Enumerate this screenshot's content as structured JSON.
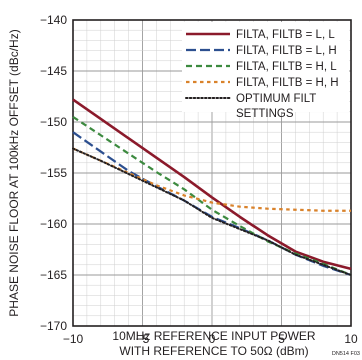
{
  "chart_data": {
    "type": "line",
    "xlabel_lines": [
      "10MHz REFERENCE INPUT POWER",
      "WITH REFERENCE TO 50Ω (dBm)"
    ],
    "ylabel": "PHASE NOISE FLOOR AT 100kHz OFFSET (dBc/Hz)",
    "figure_id": "DN514 F03",
    "xlim": [
      -10,
      10
    ],
    "ylim": [
      -170,
      -140
    ],
    "x_ticks": [
      -10,
      -5,
      0,
      5,
      10
    ],
    "y_ticks": [
      -140,
      -145,
      -150,
      -155,
      -160,
      -165,
      -170
    ],
    "grid": true,
    "legend_position": "top-right",
    "series": [
      {
        "name": "FILTA, FILTB = L, L",
        "color": "#8b1a2b",
        "style": "solid",
        "x": [
          -10,
          -8,
          -6,
          -4,
          -2,
          0,
          2,
          4,
          6,
          8,
          10
        ],
        "y": [
          -147.8,
          -149.7,
          -151.6,
          -153.5,
          -155.4,
          -157.4,
          -159.3,
          -161.1,
          -162.7,
          -163.7,
          -164.4
        ]
      },
      {
        "name": "FILTA, FILTB = L, H",
        "color": "#2c4f8f",
        "style": "longdash",
        "x": [
          -10,
          -8,
          -6,
          -4,
          -2,
          0,
          2,
          4,
          6,
          8,
          10
        ],
        "y": [
          -151.0,
          -152.9,
          -154.8,
          -156.3,
          -157.7,
          -159.3,
          -160.4,
          -161.6,
          -163.0,
          -164.1,
          -165.0
        ]
      },
      {
        "name": "FILTA, FILTB = H, L",
        "color": "#3c8a3f",
        "style": "dash",
        "x": [
          -10,
          -8,
          -6,
          -4,
          -2,
          0,
          2,
          4,
          6,
          8,
          10
        ],
        "y": [
          -149.5,
          -151.3,
          -153.1,
          -154.9,
          -156.6,
          -158.6,
          -160.2,
          -161.7,
          -162.9,
          -163.9,
          -165.0
        ]
      },
      {
        "name": "FILTA, FILTB = H, H",
        "color": "#d9822b",
        "style": "shortdash",
        "x": [
          -10,
          -8,
          -6,
          -4,
          -2,
          0,
          2,
          4,
          6,
          8,
          10
        ],
        "y": [
          -152.6,
          -153.8,
          -155.0,
          -156.2,
          -157.2,
          -157.9,
          -158.3,
          -158.5,
          -158.6,
          -158.7,
          -158.7
        ]
      },
      {
        "name_lines": [
          "OPTIMUM FILT",
          "SETTINGS"
        ],
        "color": "#231f20",
        "style": "dot",
        "x": [
          -10,
          -8,
          -6,
          -4,
          -2,
          0,
          2,
          4,
          6,
          8,
          10
        ],
        "y": [
          -152.6,
          -153.8,
          -155.1,
          -156.4,
          -157.7,
          -159.4,
          -160.5,
          -161.6,
          -163.0,
          -164.0,
          -165.0
        ]
      }
    ]
  }
}
